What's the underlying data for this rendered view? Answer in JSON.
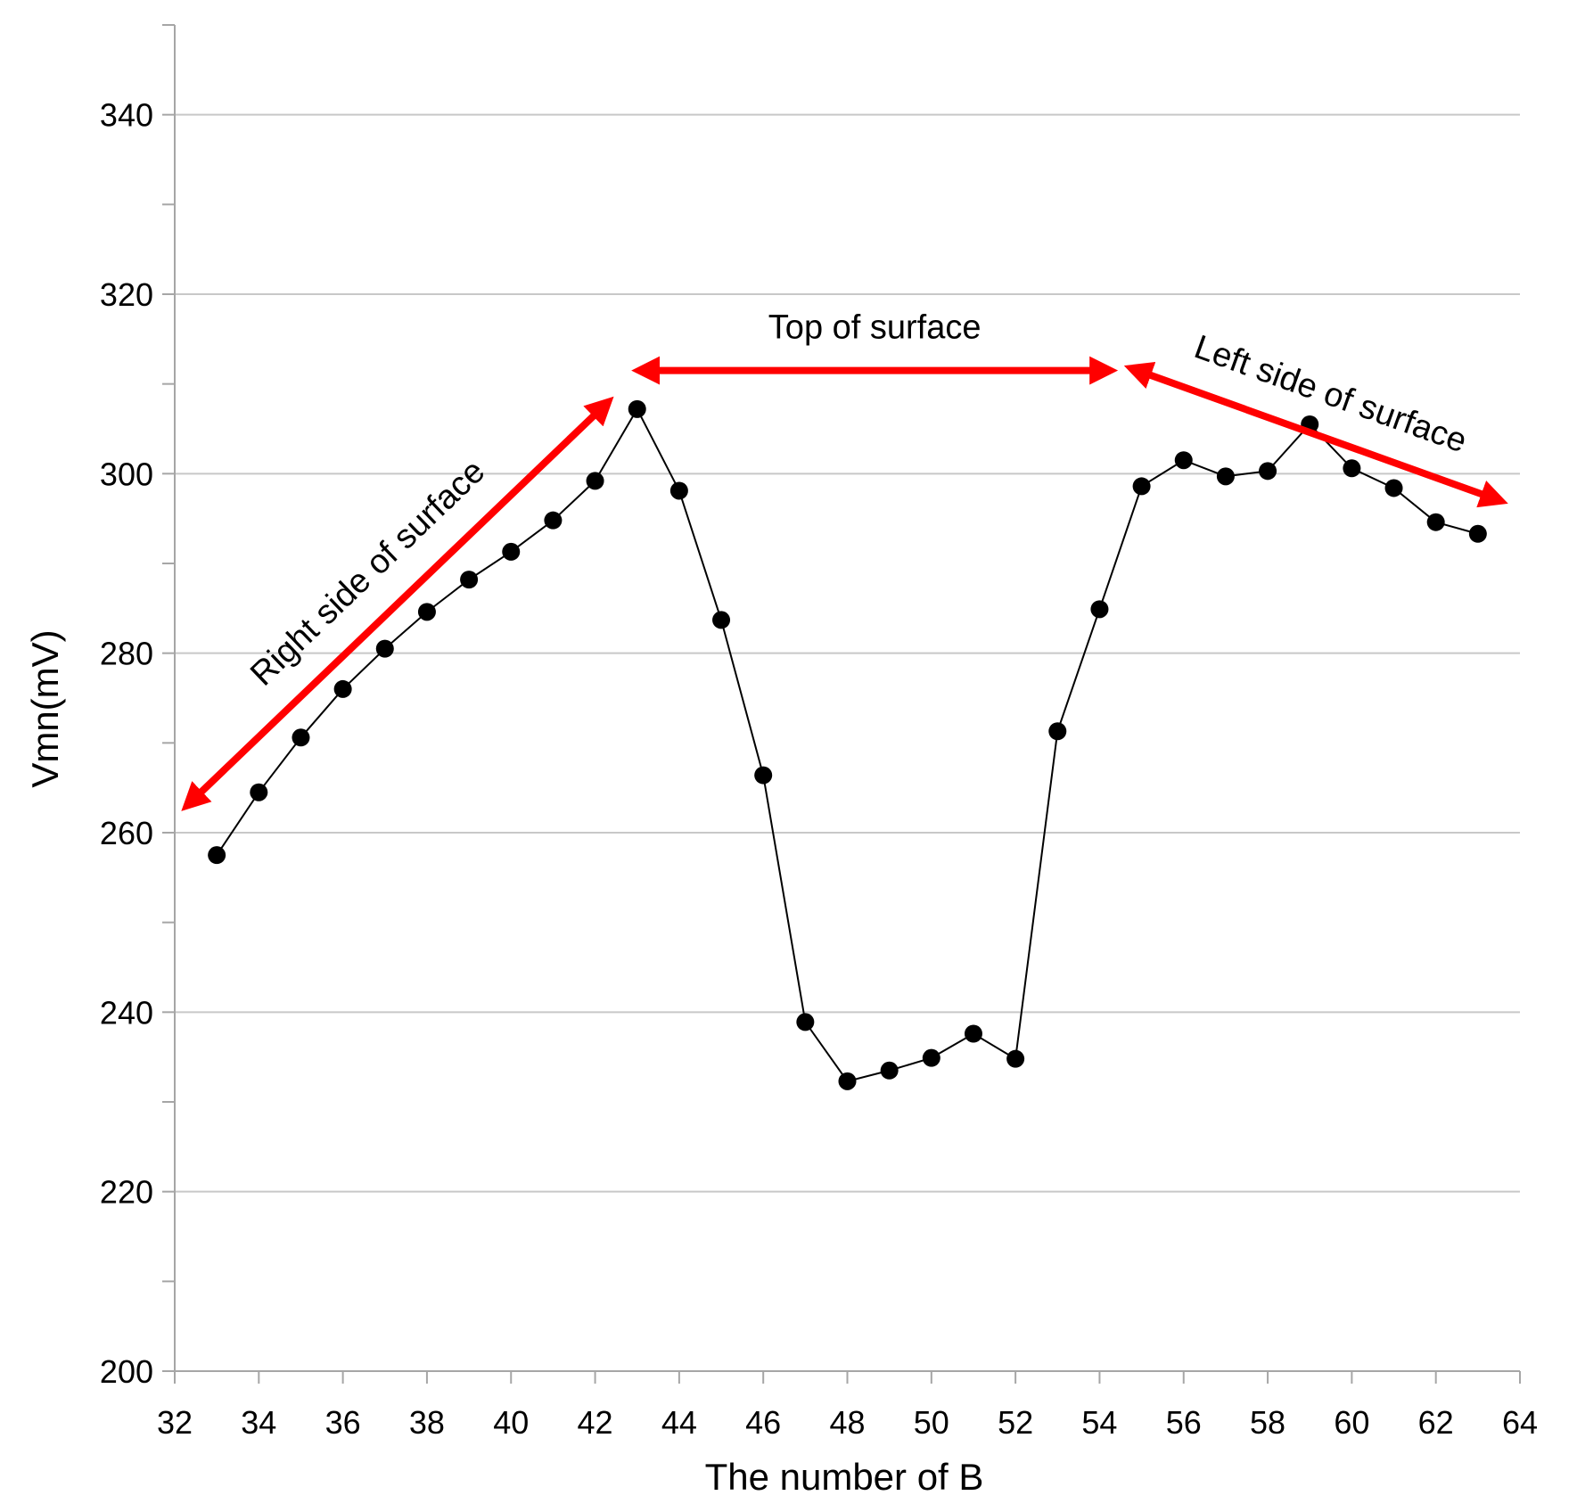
{
  "chart_data": {
    "type": "line",
    "title": "",
    "xlabel": "The number of B",
    "ylabel": "Vmn(mV)",
    "xlim": [
      32,
      64
    ],
    "ylim": [
      200,
      350
    ],
    "x_ticks": [
      32,
      34,
      36,
      38,
      40,
      42,
      44,
      46,
      48,
      50,
      52,
      54,
      56,
      58,
      60,
      62,
      64
    ],
    "y_ticks": [
      200,
      220,
      240,
      260,
      280,
      300,
      320,
      340
    ],
    "grid": "horizontal major gridlines",
    "legend": "none",
    "series": [
      {
        "color": "#000000",
        "x": [
          33,
          34,
          35,
          36,
          37,
          38,
          39,
          40,
          41,
          42,
          43,
          44,
          45,
          46,
          47,
          48,
          49,
          50,
          51,
          52,
          53,
          54,
          55,
          56,
          57,
          58,
          59,
          60,
          61,
          62,
          63
        ],
        "y": [
          257.5,
          264.5,
          270.6,
          276.0,
          280.5,
          284.6,
          288.2,
          291.3,
          294.8,
          299.2,
          307.2,
          298.1,
          283.7,
          266.4,
          238.9,
          232.3,
          233.5,
          234.9,
          237.6,
          234.8,
          271.3,
          284.9,
          298.6,
          301.5,
          299.7,
          300.3,
          305.5,
          300.6,
          298.4,
          294.6,
          293.3
        ]
      }
    ],
    "annotations": [
      {
        "text": "Right side of surface",
        "color": "#ff0000",
        "arrow_from": [
          32.4,
          263.5
        ],
        "arrow_to": [
          42.2,
          307.5
        ]
      },
      {
        "text": "Top of surface",
        "color": "#ff0000",
        "arrow_from": [
          43.2,
          311.5
        ],
        "arrow_to": [
          54.1,
          311.5
        ]
      },
      {
        "text": "Left side of surface",
        "color": "#ff0000",
        "arrow_from": [
          54.9,
          311.5
        ],
        "arrow_to": [
          63.4,
          297.2
        ]
      }
    ]
  }
}
